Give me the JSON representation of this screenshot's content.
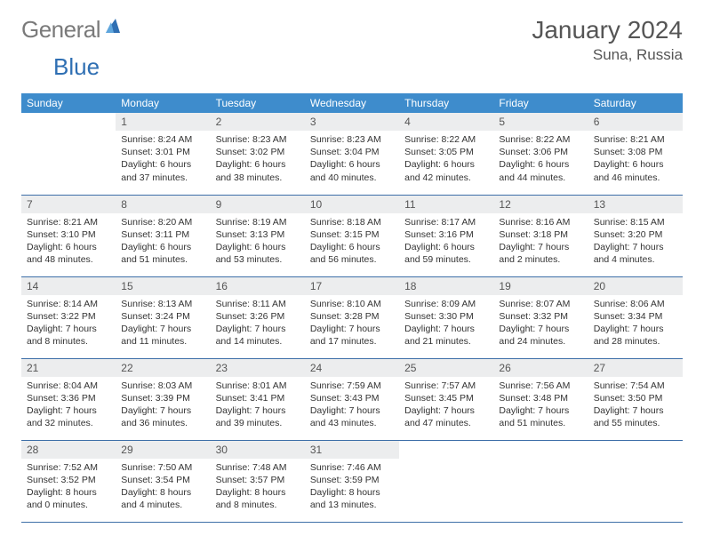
{
  "brand": {
    "word1": "General",
    "word2": "Blue",
    "word1_color": "#7a7a7a",
    "word2_color": "#2f6fb3"
  },
  "title": {
    "month": "January 2024",
    "location": "Suna, Russia"
  },
  "colors": {
    "header_bg": "#3e8ccc",
    "header_fg": "#ffffff",
    "daynum_bg": "#ecedee",
    "row_border": "#3e6fa8",
    "text": "#333333"
  },
  "calendar": {
    "weekdays": [
      "Sunday",
      "Monday",
      "Tuesday",
      "Wednesday",
      "Thursday",
      "Friday",
      "Saturday"
    ],
    "weeks": [
      [
        null,
        {
          "n": "1",
          "sr": "Sunrise: 8:24 AM",
          "ss": "Sunset: 3:01 PM",
          "dl": "Daylight: 6 hours and 37 minutes."
        },
        {
          "n": "2",
          "sr": "Sunrise: 8:23 AM",
          "ss": "Sunset: 3:02 PM",
          "dl": "Daylight: 6 hours and 38 minutes."
        },
        {
          "n": "3",
          "sr": "Sunrise: 8:23 AM",
          "ss": "Sunset: 3:04 PM",
          "dl": "Daylight: 6 hours and 40 minutes."
        },
        {
          "n": "4",
          "sr": "Sunrise: 8:22 AM",
          "ss": "Sunset: 3:05 PM",
          "dl": "Daylight: 6 hours and 42 minutes."
        },
        {
          "n": "5",
          "sr": "Sunrise: 8:22 AM",
          "ss": "Sunset: 3:06 PM",
          "dl": "Daylight: 6 hours and 44 minutes."
        },
        {
          "n": "6",
          "sr": "Sunrise: 8:21 AM",
          "ss": "Sunset: 3:08 PM",
          "dl": "Daylight: 6 hours and 46 minutes."
        }
      ],
      [
        {
          "n": "7",
          "sr": "Sunrise: 8:21 AM",
          "ss": "Sunset: 3:10 PM",
          "dl": "Daylight: 6 hours and 48 minutes."
        },
        {
          "n": "8",
          "sr": "Sunrise: 8:20 AM",
          "ss": "Sunset: 3:11 PM",
          "dl": "Daylight: 6 hours and 51 minutes."
        },
        {
          "n": "9",
          "sr": "Sunrise: 8:19 AM",
          "ss": "Sunset: 3:13 PM",
          "dl": "Daylight: 6 hours and 53 minutes."
        },
        {
          "n": "10",
          "sr": "Sunrise: 8:18 AM",
          "ss": "Sunset: 3:15 PM",
          "dl": "Daylight: 6 hours and 56 minutes."
        },
        {
          "n": "11",
          "sr": "Sunrise: 8:17 AM",
          "ss": "Sunset: 3:16 PM",
          "dl": "Daylight: 6 hours and 59 minutes."
        },
        {
          "n": "12",
          "sr": "Sunrise: 8:16 AM",
          "ss": "Sunset: 3:18 PM",
          "dl": "Daylight: 7 hours and 2 minutes."
        },
        {
          "n": "13",
          "sr": "Sunrise: 8:15 AM",
          "ss": "Sunset: 3:20 PM",
          "dl": "Daylight: 7 hours and 4 minutes."
        }
      ],
      [
        {
          "n": "14",
          "sr": "Sunrise: 8:14 AM",
          "ss": "Sunset: 3:22 PM",
          "dl": "Daylight: 7 hours and 8 minutes."
        },
        {
          "n": "15",
          "sr": "Sunrise: 8:13 AM",
          "ss": "Sunset: 3:24 PM",
          "dl": "Daylight: 7 hours and 11 minutes."
        },
        {
          "n": "16",
          "sr": "Sunrise: 8:11 AM",
          "ss": "Sunset: 3:26 PM",
          "dl": "Daylight: 7 hours and 14 minutes."
        },
        {
          "n": "17",
          "sr": "Sunrise: 8:10 AM",
          "ss": "Sunset: 3:28 PM",
          "dl": "Daylight: 7 hours and 17 minutes."
        },
        {
          "n": "18",
          "sr": "Sunrise: 8:09 AM",
          "ss": "Sunset: 3:30 PM",
          "dl": "Daylight: 7 hours and 21 minutes."
        },
        {
          "n": "19",
          "sr": "Sunrise: 8:07 AM",
          "ss": "Sunset: 3:32 PM",
          "dl": "Daylight: 7 hours and 24 minutes."
        },
        {
          "n": "20",
          "sr": "Sunrise: 8:06 AM",
          "ss": "Sunset: 3:34 PM",
          "dl": "Daylight: 7 hours and 28 minutes."
        }
      ],
      [
        {
          "n": "21",
          "sr": "Sunrise: 8:04 AM",
          "ss": "Sunset: 3:36 PM",
          "dl": "Daylight: 7 hours and 32 minutes."
        },
        {
          "n": "22",
          "sr": "Sunrise: 8:03 AM",
          "ss": "Sunset: 3:39 PM",
          "dl": "Daylight: 7 hours and 36 minutes."
        },
        {
          "n": "23",
          "sr": "Sunrise: 8:01 AM",
          "ss": "Sunset: 3:41 PM",
          "dl": "Daylight: 7 hours and 39 minutes."
        },
        {
          "n": "24",
          "sr": "Sunrise: 7:59 AM",
          "ss": "Sunset: 3:43 PM",
          "dl": "Daylight: 7 hours and 43 minutes."
        },
        {
          "n": "25",
          "sr": "Sunrise: 7:57 AM",
          "ss": "Sunset: 3:45 PM",
          "dl": "Daylight: 7 hours and 47 minutes."
        },
        {
          "n": "26",
          "sr": "Sunrise: 7:56 AM",
          "ss": "Sunset: 3:48 PM",
          "dl": "Daylight: 7 hours and 51 minutes."
        },
        {
          "n": "27",
          "sr": "Sunrise: 7:54 AM",
          "ss": "Sunset: 3:50 PM",
          "dl": "Daylight: 7 hours and 55 minutes."
        }
      ],
      [
        {
          "n": "28",
          "sr": "Sunrise: 7:52 AM",
          "ss": "Sunset: 3:52 PM",
          "dl": "Daylight: 8 hours and 0 minutes."
        },
        {
          "n": "29",
          "sr": "Sunrise: 7:50 AM",
          "ss": "Sunset: 3:54 PM",
          "dl": "Daylight: 8 hours and 4 minutes."
        },
        {
          "n": "30",
          "sr": "Sunrise: 7:48 AM",
          "ss": "Sunset: 3:57 PM",
          "dl": "Daylight: 8 hours and 8 minutes."
        },
        {
          "n": "31",
          "sr": "Sunrise: 7:46 AM",
          "ss": "Sunset: 3:59 PM",
          "dl": "Daylight: 8 hours and 13 minutes."
        },
        null,
        null,
        null
      ]
    ]
  }
}
